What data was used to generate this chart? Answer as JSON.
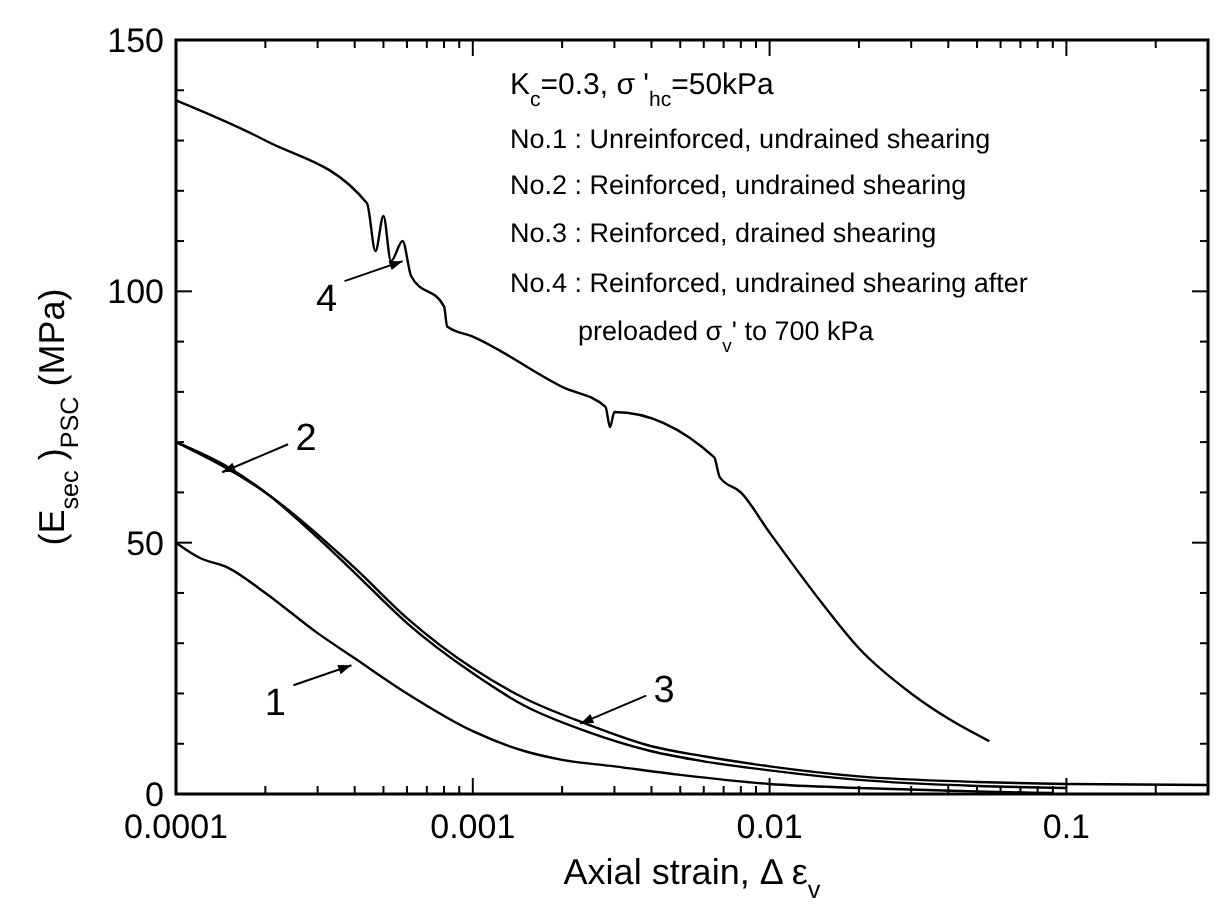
{
  "chart_data": {
    "type": "line",
    "xlabel": "Axial strain,  Δ ε$_{v}$",
    "ylabel": "(E$_{sec}$ )$_{PSC}$  (MPa)",
    "log": "x",
    "xlim": [
      0.0001,
      0.3
    ],
    "ylim": [
      0,
      150
    ],
    "xticks": [
      0.0001,
      {
        "value": 0.0002,
        "label": null
      },
      {
        "value": 0.0003,
        "label": null
      },
      {
        "value": 0.0004,
        "label": null
      },
      {
        "value": 0.0005,
        "label": null
      },
      {
        "value": 0.0006,
        "label": null
      },
      {
        "value": 0.0007,
        "label": null
      },
      {
        "value": 0.0008,
        "label": null
      },
      {
        "value": 0.0009,
        "label": null
      },
      0.001,
      {
        "value": 0.002,
        "label": null
      },
      {
        "value": 0.003,
        "label": null
      },
      {
        "value": 0.004,
        "label": null
      },
      {
        "value": 0.005,
        "label": null
      },
      {
        "value": 0.006,
        "label": null
      },
      {
        "value": 0.007,
        "label": null
      },
      {
        "value": 0.008,
        "label": null
      },
      {
        "value": 0.009,
        "label": null
      },
      0.01,
      {
        "value": 0.02,
        "label": null
      },
      {
        "value": 0.03,
        "label": null
      },
      {
        "value": 0.04,
        "label": null
      },
      {
        "value": 0.05,
        "label": null
      },
      {
        "value": 0.06,
        "label": null
      },
      {
        "value": 0.07,
        "label": null
      },
      {
        "value": 0.08,
        "label": null
      },
      {
        "value": 0.09,
        "label": null
      },
      0.1,
      {
        "value": 0.2,
        "label": null
      }
    ],
    "yticks": [
      0,
      {
        "value": 10,
        "label": null
      },
      {
        "value": 20,
        "label": null
      },
      {
        "value": 30,
        "label": null
      },
      {
        "value": 40,
        "label": null
      },
      50,
      {
        "value": 60,
        "label": null
      },
      {
        "value": 70,
        "label": null
      },
      {
        "value": 80,
        "label": null
      },
      {
        "value": 90,
        "label": null
      },
      100,
      {
        "value": 110,
        "label": null
      },
      {
        "value": 120,
        "label": null
      },
      {
        "value": 130,
        "label": null
      },
      {
        "value": 140,
        "label": null
      },
      150
    ],
    "grid": false,
    "marker": "none",
    "line_style": "solid",
    "series": [
      {
        "color": "#000000",
        "x": [
          0.0001,
          0.00012,
          0.00015,
          0.0002,
          0.0003,
          0.0004,
          0.0006,
          0.001,
          0.0015,
          0.002,
          0.003,
          0.005,
          0.01,
          0.02,
          0.05,
          0.09
        ],
        "values": [
          50,
          47,
          45,
          40,
          32,
          27,
          20,
          12.5,
          8.5,
          6.8,
          5.5,
          3.8,
          2,
          1.2,
          0.5,
          0.2
        ]
      },
      {
        "color": "#000000",
        "x": [
          0.0001,
          0.00015,
          0.0002,
          0.0003,
          0.0004,
          0.0006,
          0.001,
          0.0015,
          0.0024,
          0.004,
          0.006,
          0.01,
          0.02,
          0.05,
          0.1
        ],
        "values": [
          70,
          65,
          60,
          51,
          44,
          34,
          24,
          17.5,
          12.5,
          8.5,
          6.5,
          4.7,
          2.8,
          1.6,
          1.2
        ]
      },
      {
        "color": "#000000",
        "x": [
          0.0001,
          0.0002,
          0.0004,
          0.0006,
          0.001,
          0.0015,
          0.0024,
          0.004,
          0.006,
          0.01,
          0.02,
          0.05,
          0.1,
          0.3
        ],
        "values": [
          70,
          60,
          45,
          35,
          25,
          19,
          14,
          9.5,
          7.5,
          5.5,
          3.5,
          2.4,
          2,
          1.8
        ]
      },
      {
        "color": "#000000",
        "x": [
          0.0001,
          0.0002,
          0.00044,
          0.00047,
          0.0005,
          0.00053,
          0.00058,
          0.00062,
          0.0008,
          0.00082,
          0.001,
          0.002,
          0.0028,
          0.0029,
          0.003,
          0.0065,
          0.0068,
          0.008,
          0.01,
          0.015,
          0.02,
          0.03,
          0.04,
          0.055
        ],
        "values": [
          138,
          130,
          117.5,
          108,
          115,
          106,
          110,
          103,
          97,
          93,
          91,
          81,
          77,
          73,
          76,
          67,
          63,
          60,
          52,
          38,
          29,
          20,
          15,
          10.5
        ]
      }
    ],
    "annotations": [
      {
        "text": "4",
        "x": 0.00058,
        "y": 106
      },
      {
        "text": "2",
        "x": 0.000143,
        "y": 64
      },
      {
        "text": "1",
        "x": 0.00039,
        "y": 25.6
      },
      {
        "text": "3",
        "x": 0.0023,
        "y": 14
      },
      "K$_{c}$=0.3, σ '$_{hc}$=50kPa",
      "No.1 : Unreinforced, undrained shearing",
      "No.2 : Reinforced, undrained shearing",
      "No.3 : Reinforced, drained shearing",
      "No.4 : Reinforced, undrained shearing after",
      "preloaded σ$_{v}$' to 700 kPa"
    ]
  }
}
